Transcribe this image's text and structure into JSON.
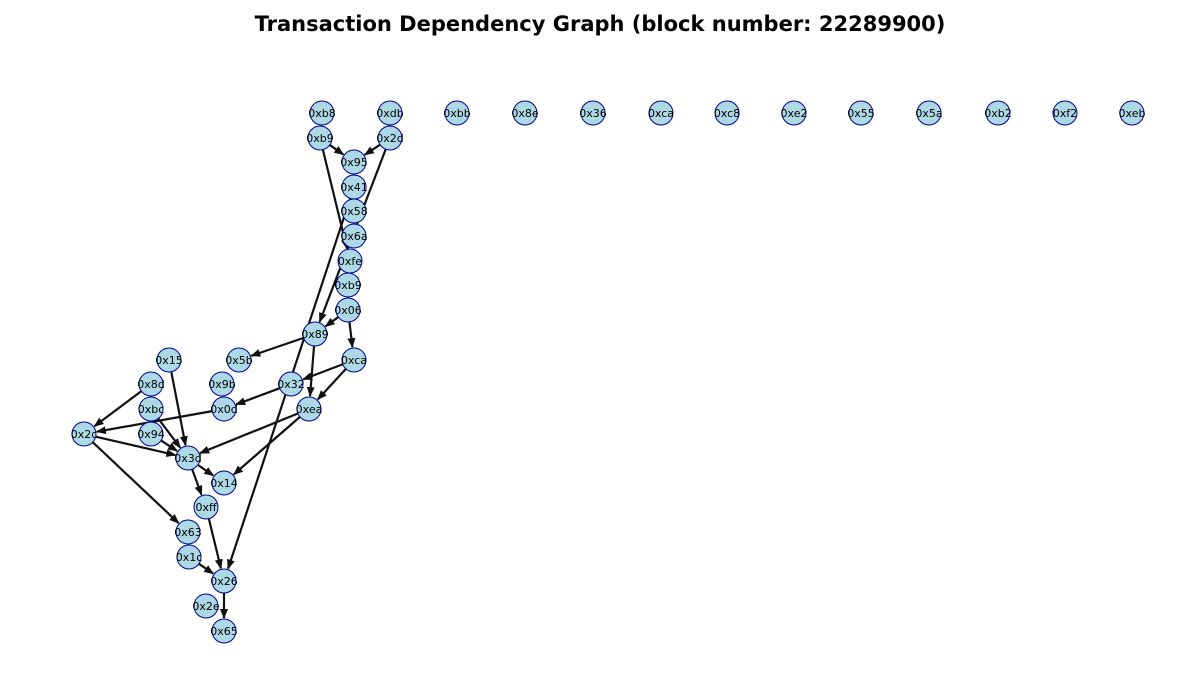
{
  "title": "Transaction Dependency Graph (block number: 22289900)",
  "colors": {
    "node_fill": "#add8e6",
    "node_stroke": "#00008b",
    "edge": "#111111",
    "background": "#ffffff"
  },
  "nodes": [
    {
      "id": "n1",
      "label": "0xb8"
    },
    {
      "id": "n2",
      "label": "0xdb"
    },
    {
      "id": "n3",
      "label": "0xbb"
    },
    {
      "id": "n4",
      "label": "0x8e"
    },
    {
      "id": "n5",
      "label": "0x36"
    },
    {
      "id": "n6",
      "label": "0xca"
    },
    {
      "id": "n7",
      "label": "0xc8"
    },
    {
      "id": "n8",
      "label": "0xe2"
    },
    {
      "id": "n9",
      "label": "0x55"
    },
    {
      "id": "n10",
      "label": "0x5a"
    },
    {
      "id": "n11",
      "label": "0xb2"
    },
    {
      "id": "n12",
      "label": "0xf2"
    },
    {
      "id": "n13",
      "label": "0xeb"
    },
    {
      "id": "n14",
      "label": "0xb9"
    },
    {
      "id": "n15",
      "label": "0x2d"
    },
    {
      "id": "n16",
      "label": "0x95"
    },
    {
      "id": "n17",
      "label": "0x41"
    },
    {
      "id": "n18",
      "label": "0x58"
    },
    {
      "id": "n19",
      "label": "0x6a"
    },
    {
      "id": "n20",
      "label": "0xfe"
    },
    {
      "id": "n21",
      "label": "0xb9"
    },
    {
      "id": "n22",
      "label": "0x06"
    },
    {
      "id": "n23",
      "label": "0x89"
    },
    {
      "id": "n24",
      "label": "0x15"
    },
    {
      "id": "n25",
      "label": "0x5b"
    },
    {
      "id": "n26",
      "label": "0xca"
    },
    {
      "id": "n27",
      "label": "0x8d"
    },
    {
      "id": "n28",
      "label": "0x9b"
    },
    {
      "id": "n29",
      "label": "0x32"
    },
    {
      "id": "n30",
      "label": "0xbc"
    },
    {
      "id": "n31",
      "label": "0x0d"
    },
    {
      "id": "n32",
      "label": "0xea"
    },
    {
      "id": "n33",
      "label": "0x2c"
    },
    {
      "id": "n34",
      "label": "0x94"
    },
    {
      "id": "n35",
      "label": "0x3d"
    },
    {
      "id": "n36",
      "label": "0x14"
    },
    {
      "id": "n37",
      "label": "0xff"
    },
    {
      "id": "n38",
      "label": "0x63"
    },
    {
      "id": "n39",
      "label": "0x1c"
    },
    {
      "id": "n40",
      "label": "0x26"
    },
    {
      "id": "n41",
      "label": "0x2e"
    },
    {
      "id": "n42",
      "label": "0x65"
    }
  ],
  "edges": [
    {
      "from": "n14",
      "to": "n16"
    },
    {
      "from": "n15",
      "to": "n16"
    },
    {
      "from": "n14",
      "to": "n20"
    },
    {
      "from": "n15",
      "to": "n23"
    },
    {
      "from": "n17",
      "to": "n40"
    },
    {
      "from": "n22",
      "to": "n23"
    },
    {
      "from": "n22",
      "to": "n26"
    },
    {
      "from": "n23",
      "to": "n25"
    },
    {
      "from": "n23",
      "to": "n32"
    },
    {
      "from": "n26",
      "to": "n29"
    },
    {
      "from": "n26",
      "to": "n32"
    },
    {
      "from": "n29",
      "to": "n31"
    },
    {
      "from": "n31",
      "to": "n33"
    },
    {
      "from": "n27",
      "to": "n33"
    },
    {
      "from": "n24",
      "to": "n35"
    },
    {
      "from": "n30",
      "to": "n35"
    },
    {
      "from": "n34",
      "to": "n35"
    },
    {
      "from": "n33",
      "to": "n35"
    },
    {
      "from": "n32",
      "to": "n35"
    },
    {
      "from": "n32",
      "to": "n36"
    },
    {
      "from": "n35",
      "to": "n36"
    },
    {
      "from": "n35",
      "to": "n37"
    },
    {
      "from": "n33",
      "to": "n38"
    },
    {
      "from": "n37",
      "to": "n40"
    },
    {
      "from": "n39",
      "to": "n40"
    },
    {
      "from": "n40",
      "to": "n42"
    }
  ]
}
